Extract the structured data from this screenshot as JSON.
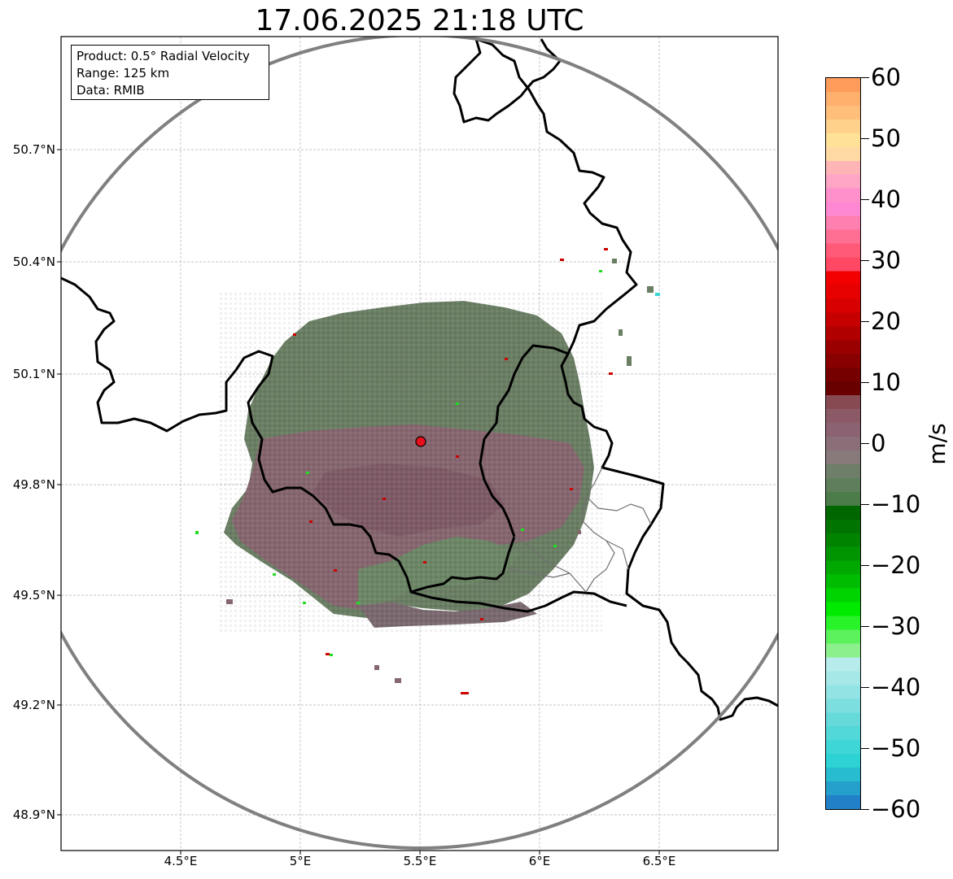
{
  "title": "17.06.2025 21:18 UTC",
  "info_box": {
    "product": "Product: 0.5° Radial Velocity",
    "range": "Range: 125 km",
    "data": "Data: RMIB"
  },
  "map": {
    "lat_ticks": [
      "50.7°N",
      "50.4°N",
      "50.1°N",
      "49.8°N",
      "49.5°N",
      "49.2°N",
      "48.9°N"
    ],
    "lon_ticks": [
      "4.5°E",
      "5°E",
      "5.5°E",
      "6°E",
      "6.5°E"
    ],
    "radar_site_marker_color": "#e8101a",
    "range_ring_color": "#808080",
    "border_color": "#000000",
    "gridlines": true
  },
  "colorbar": {
    "label": "m/s",
    "min": -60,
    "max": 60,
    "ticks": [
      "60",
      "50",
      "40",
      "30",
      "20",
      "10",
      "0",
      "−10",
      "−20",
      "−30",
      "−40",
      "−50",
      "−60"
    ],
    "colors_top_to_bottom": [
      "#ff9c5c",
      "#ffb06c",
      "#ffbf7b",
      "#ffd18a",
      "#ffe298",
      "#ffd9a4",
      "#ffb5b5",
      "#ffa5c6",
      "#ff90cb",
      "#ff88d2",
      "#ff7fb0",
      "#ff6e93",
      "#ff5a78",
      "#ff4964",
      "#f20000",
      "#e60000",
      "#d80000",
      "#c60000",
      "#b00000",
      "#9a0000",
      "#880000",
      "#760000",
      "#680000",
      "#884a52",
      "#8c5a66",
      "#8a6272",
      "#8a6e78",
      "#887a7a",
      "#6e7e68",
      "#5e7e5c",
      "#4c7c4a",
      "#006600",
      "#007400",
      "#008400",
      "#009400",
      "#00a800",
      "#00bc00",
      "#00d400",
      "#00ea00",
      "#28f228",
      "#5cf25c",
      "#8cf08c",
      "#b8ecec",
      "#a6e8e8",
      "#92e4e4",
      "#7cdede",
      "#66dada",
      "#52d8d8",
      "#3ed6d6",
      "#2cd2d4",
      "#28bcd0",
      "#259fcc",
      "#2180c8"
    ]
  }
}
